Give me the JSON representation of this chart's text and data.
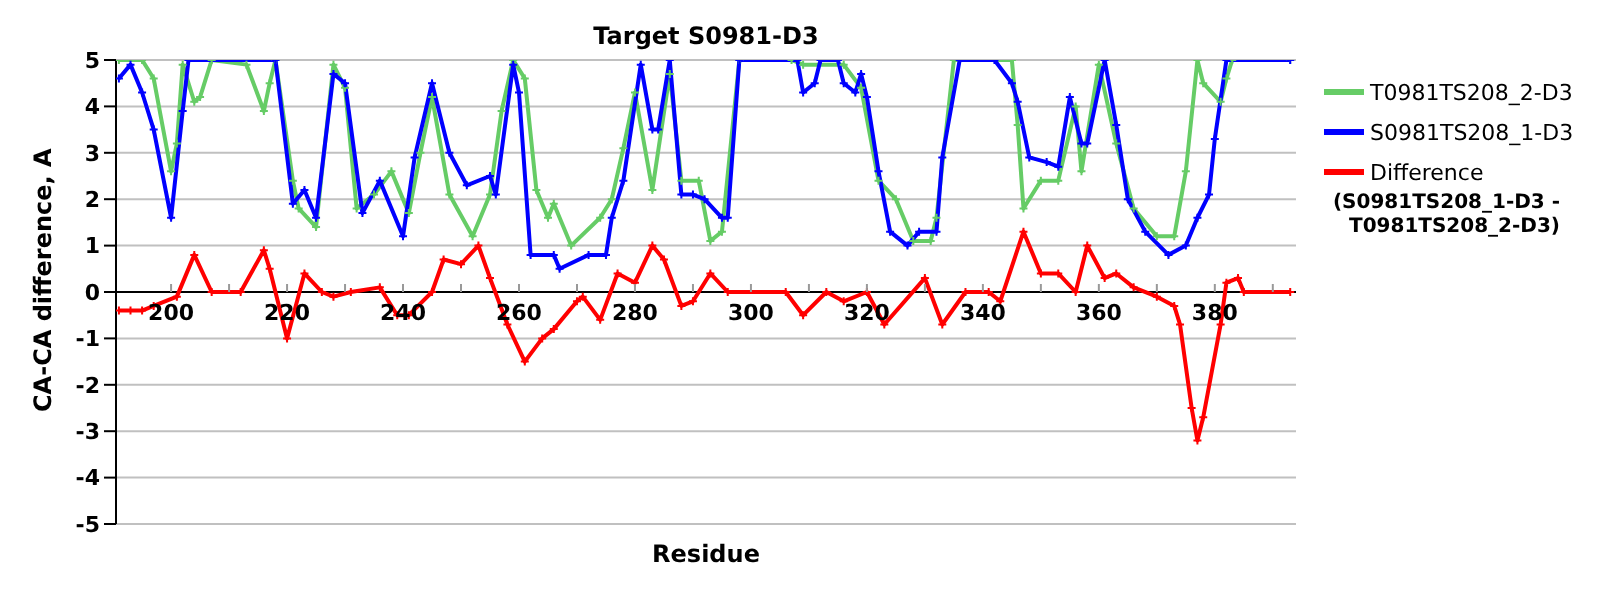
{
  "chart_data": {
    "type": "line",
    "title": "Target S0981-D3",
    "xlabel": "Residue",
    "ylabel": "CA-CA difference, A",
    "xlim": [
      190.5,
      394
    ],
    "xticks": [
      200,
      {
        "value": 210,
        "label": null
      },
      220,
      {
        "value": 230,
        "label": null
      },
      240,
      {
        "value": 250,
        "label": null
      },
      260,
      {
        "value": 270,
        "label": null
      },
      280,
      {
        "value": 290,
        "label": null
      },
      300,
      {
        "value": 310,
        "label": null
      },
      320,
      {
        "value": 330,
        "label": null
      },
      340,
      {
        "value": 350,
        "label": null
      },
      360,
      {
        "value": 370,
        "label": null
      },
      380,
      {
        "value": 390,
        "label": null
      }
    ],
    "ylim": [
      -5,
      5
    ],
    "yticks": [
      -5,
      -4,
      -3,
      -2,
      -1,
      0,
      1,
      2,
      3,
      4,
      5
    ],
    "grid": "y",
    "legend": "right",
    "marker": "cross",
    "line_style": "solid",
    "annotations": [
      "(S0981TS208_1-D3 - T0981TS208_2-D3)"
    ],
    "series": [
      {
        "name": "T0981TS208_2-D3",
        "color": "#66cc66",
        "x": [
          191,
          195,
          197,
          200,
          201,
          202,
          204,
          205,
          207,
          213,
          216,
          217,
          218,
          221,
          222,
          225,
          228,
          230,
          232,
          235,
          238,
          241,
          243,
          245,
          248,
          252,
          255,
          257,
          259,
          261,
          263,
          265,
          266,
          269,
          274,
          276,
          278,
          280,
          283,
          286,
          288,
          291,
          293,
          295,
          298,
          307,
          309,
          316,
          319,
          322,
          325,
          328,
          331,
          332,
          335,
          345,
          346,
          347,
          350,
          353,
          356,
          357,
          360,
          363,
          366,
          370,
          373,
          375,
          377,
          378,
          381,
          382,
          383,
          393
        ],
        "values": [
          5,
          5,
          4.6,
          2.6,
          3.2,
          4.9,
          4.1,
          4.2,
          5,
          4.9,
          3.9,
          4.5,
          5,
          2.4,
          1.8,
          1.4,
          4.9,
          4.4,
          1.8,
          2.1,
          2.6,
          1.7,
          3,
          4.2,
          2.1,
          1.2,
          2.1,
          3.9,
          5,
          4.6,
          2.2,
          1.6,
          1.9,
          1,
          1.6,
          2,
          3.1,
          4.3,
          2.2,
          4.7,
          2.4,
          2.4,
          1.1,
          1.3,
          5,
          5,
          4.9,
          4.9,
          4.4,
          2.4,
          2,
          1.1,
          1.1,
          1.6,
          5,
          5,
          3.6,
          1.8,
          2.4,
          2.4,
          4,
          2.6,
          4.9,
          3.2,
          1.8,
          1.2,
          1.2,
          2.6,
          5,
          4.5,
          4.1,
          4.6,
          5,
          5
        ]
      },
      {
        "name": "S0981TS208_1-D3",
        "color": "#0000ff",
        "x": [
          191,
          193,
          195,
          197,
          200,
          202,
          203,
          218,
          221,
          223,
          225,
          228,
          230,
          233,
          236,
          240,
          242,
          245,
          248,
          251,
          255,
          256,
          259,
          260,
          262,
          266,
          267,
          272,
          275,
          276,
          278,
          281,
          283,
          284,
          286,
          288,
          290,
          292,
          295,
          296,
          298,
          308,
          309,
          311,
          312,
          315,
          316,
          318,
          319,
          320,
          322,
          324,
          327,
          329,
          332,
          333,
          336,
          342,
          345,
          346,
          348,
          351,
          353,
          355,
          357,
          358,
          361,
          363,
          365,
          368,
          372,
          375,
          377,
          379,
          380,
          382,
          393
        ],
        "values": [
          4.6,
          4.9,
          4.3,
          3.5,
          1.6,
          3.9,
          5,
          5,
          1.9,
          2.2,
          1.6,
          4.7,
          4.5,
          1.7,
          2.4,
          1.2,
          2.9,
          4.5,
          3,
          2.3,
          2.5,
          2.1,
          4.9,
          4.3,
          0.8,
          0.8,
          0.5,
          0.8,
          0.8,
          1.6,
          2.4,
          4.9,
          3.5,
          3.5,
          5,
          2.1,
          2.1,
          2,
          1.6,
          1.6,
          5,
          5,
          4.3,
          4.5,
          5,
          5,
          4.5,
          4.3,
          4.7,
          4.2,
          2.6,
          1.3,
          1,
          1.3,
          1.3,
          2.9,
          5,
          5,
          4.5,
          4.1,
          2.9,
          2.8,
          2.7,
          4.2,
          3.2,
          3.2,
          5,
          3.6,
          2,
          1.3,
          0.8,
          1,
          1.6,
          2.1,
          3.3,
          5,
          5
        ]
      },
      {
        "name": "Difference",
        "color": "#ff0000",
        "x": [
          191,
          193,
          195,
          197,
          201,
          204,
          207,
          212,
          216,
          217,
          220,
          223,
          226,
          228,
          231,
          236,
          239,
          241,
          245,
          247,
          250,
          253,
          255,
          258,
          261,
          264,
          266,
          270,
          271,
          274,
          277,
          280,
          283,
          285,
          288,
          290,
          293,
          296,
          306,
          309,
          313,
          316,
          320,
          323,
          330,
          333,
          337,
          341,
          343,
          347,
          350,
          353,
          356,
          358,
          361,
          363,
          366,
          370,
          373,
          374,
          376,
          377,
          378,
          381,
          382,
          384,
          385,
          393
        ],
        "values": [
          -0.4,
          -0.4,
          -0.4,
          -0.3,
          -0.1,
          0.8,
          0,
          0,
          0.9,
          0.5,
          -1,
          0.4,
          0,
          -0.1,
          0,
          0.1,
          -0.5,
          -0.5,
          0,
          0.7,
          0.6,
          1,
          0.3,
          -0.7,
          -1.5,
          -1,
          -0.8,
          -0.2,
          -0.1,
          -0.6,
          0.4,
          0.2,
          1,
          0.7,
          -0.3,
          -0.2,
          0.4,
          0,
          0,
          -0.5,
          0,
          -0.2,
          0,
          -0.7,
          0.3,
          -0.7,
          0,
          0,
          -0.2,
          1.3,
          0.4,
          0.4,
          0,
          1,
          0.3,
          0.4,
          0.1,
          -0.1,
          -0.3,
          -0.7,
          -2.5,
          -3.2,
          -2.7,
          -0.7,
          0.2,
          0.3,
          0,
          0
        ]
      }
    ]
  }
}
